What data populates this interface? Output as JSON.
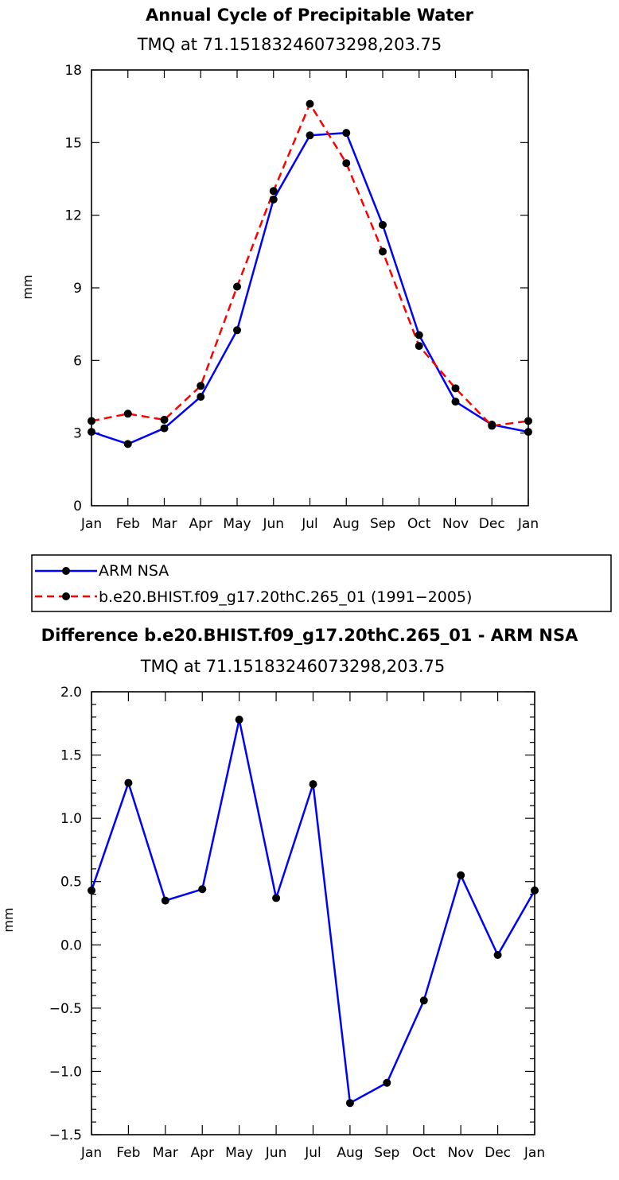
{
  "chart_data": [
    {
      "type": "line",
      "title": "Annual Cycle of Precipitable Water",
      "subtitle": "TMQ  at  71.15183246073298,203.75",
      "xlabel": "",
      "ylabel": "mm",
      "categories": [
        "Jan",
        "Feb",
        "Mar",
        "Apr",
        "May",
        "Jun",
        "Jul",
        "Aug",
        "Sep",
        "Oct",
        "Nov",
        "Dec",
        "Jan"
      ],
      "ylim": [
        0,
        18
      ],
      "yticks": [
        0,
        3,
        6,
        9,
        12,
        15,
        18
      ],
      "ytick_labels": [
        "0",
        "3",
        "6",
        "9",
        "12",
        "15",
        "18"
      ],
      "series": [
        {
          "name": "ARM  NSA",
          "color": "#0000ff",
          "dash": "solid",
          "values": [
            3.05,
            2.55,
            3.2,
            4.5,
            7.25,
            12.65,
            15.3,
            15.4,
            11.6,
            7.05,
            4.3,
            3.35,
            3.05
          ]
        },
        {
          "name": "b.e20.BHIST.f09_g17.20thC.265_01  (1991−2005)",
          "color": "#ff0000",
          "dash": "dashed",
          "values": [
            3.5,
            3.8,
            3.55,
            4.95,
            9.05,
            13.0,
            16.6,
            14.15,
            10.5,
            6.6,
            4.85,
            3.3,
            3.5
          ]
        }
      ],
      "legend_position": "below-left"
    },
    {
      "type": "line",
      "title": "Difference b.e20.BHIST.f09_g17.20thC.265_01 - ARM NSA",
      "subtitle": "TMQ  at  71.15183246073298,203.75",
      "xlabel": "",
      "ylabel": "mm",
      "categories": [
        "Jan",
        "Feb",
        "Mar",
        "Apr",
        "May",
        "Jun",
        "Jul",
        "Aug",
        "Sep",
        "Oct",
        "Nov",
        "Dec",
        "Jan"
      ],
      "ylim": [
        -1.5,
        2.0
      ],
      "yticks": [
        -1.5,
        -1.0,
        -0.5,
        0.0,
        0.5,
        1.0,
        1.5,
        2.0
      ],
      "ytick_labels": [
        "−1.5",
        "−1.0",
        "−0.5",
        "0.0",
        "0.5",
        "1.0",
        "1.5",
        "2.0"
      ],
      "series": [
        {
          "name": "Difference",
          "color": "#0000ff",
          "dash": "solid",
          "values": [
            0.43,
            1.28,
            0.35,
            0.44,
            1.78,
            0.37,
            1.27,
            -1.25,
            -1.09,
            -0.44,
            0.55,
            -0.08,
            0.43
          ]
        }
      ]
    }
  ]
}
